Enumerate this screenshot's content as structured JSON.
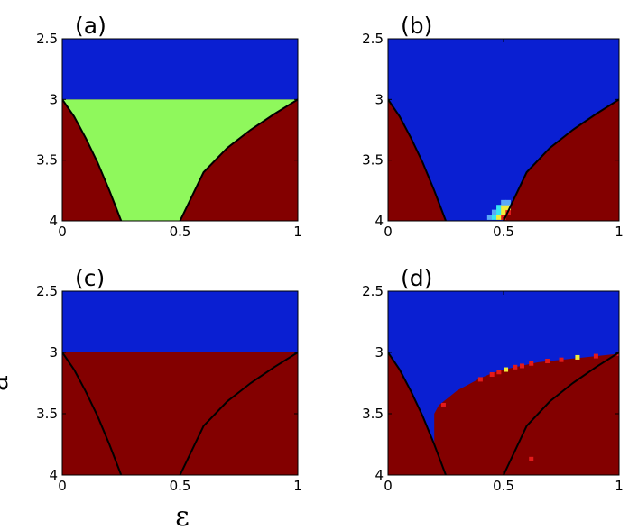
{
  "colors": {
    "blue": "#0a1fd2",
    "green": "#8ff85c",
    "darkred": "#830000",
    "red": "#e41a1a",
    "yellow": "#f1ec3a",
    "cyan": "#37e7f2",
    "lightblue": "#5aa9f7",
    "boundary": "#000000"
  },
  "axes": {
    "xlabel": "ε",
    "ylabel": "a"
  },
  "chart_data": [
    {
      "type": "heatmap",
      "panel": "(a)",
      "xlim": [
        0,
        1
      ],
      "ylim": [
        2.5,
        4
      ],
      "y_inverted": true,
      "xticks": [
        "0",
        "0.5",
        "1"
      ],
      "yticks": [
        "2.5",
        "3",
        "3.5",
        "4"
      ],
      "regions": [
        {
          "color": "blue",
          "description": "a from 2.5 to 3, all ε"
        },
        {
          "color": "green",
          "description": "a from 3 to 4, between the two boundary curves"
        },
        {
          "color": "darkred",
          "description": "a from 3 to 4, outside the boundary curves"
        }
      ],
      "left_boundary": {
        "x": [
          0,
          0.05,
          0.1,
          0.15,
          0.2,
          0.25
        ],
        "y": [
          3.0,
          3.14,
          3.32,
          3.52,
          3.75,
          4.0
        ]
      },
      "right_boundary": {
        "x": [
          0.5,
          0.6,
          0.7,
          0.8,
          0.9,
          1.0
        ],
        "y": [
          4.0,
          3.6,
          3.4,
          3.25,
          3.12,
          3.0
        ]
      }
    },
    {
      "type": "heatmap",
      "panel": "(b)",
      "xlim": [
        0,
        1
      ],
      "ylim": [
        2.5,
        4
      ],
      "y_inverted": true,
      "xticks": [
        "0",
        "0.5",
        "1"
      ],
      "yticks": [
        "2.5",
        "3",
        "3.5",
        "4"
      ],
      "regions": [
        {
          "color": "blue",
          "description": "a from 2.5 to 4, between the boundary curves"
        },
        {
          "color": "darkred",
          "description": "a from 3 to 4, outside the boundary curves"
        }
      ],
      "left_boundary": {
        "x": [
          0,
          0.05,
          0.1,
          0.15,
          0.2,
          0.25
        ],
        "y": [
          3.0,
          3.14,
          3.32,
          3.52,
          3.75,
          4.0
        ]
      },
      "right_boundary": {
        "x": [
          0.5,
          0.6,
          0.7,
          0.8,
          0.9,
          1.0
        ],
        "y": [
          4.0,
          3.6,
          3.4,
          3.25,
          3.12,
          3.0
        ]
      },
      "hotspot_cells": [
        {
          "x": 0.44,
          "y": 3.97,
          "color": "lightblue"
        },
        {
          "x": 0.46,
          "y": 3.97,
          "color": "cyan"
        },
        {
          "x": 0.46,
          "y": 3.93,
          "color": "lightblue"
        },
        {
          "x": 0.48,
          "y": 3.97,
          "color": "yellow"
        },
        {
          "x": 0.48,
          "y": 3.93,
          "color": "cyan"
        },
        {
          "x": 0.48,
          "y": 3.89,
          "color": "cyan"
        },
        {
          "x": 0.5,
          "y": 3.97,
          "color": "red"
        },
        {
          "x": 0.5,
          "y": 3.93,
          "color": "yellow"
        },
        {
          "x": 0.5,
          "y": 3.89,
          "color": "yellow"
        },
        {
          "x": 0.5,
          "y": 3.85,
          "color": "lightblue"
        },
        {
          "x": 0.52,
          "y": 3.93,
          "color": "red"
        },
        {
          "x": 0.52,
          "y": 3.89,
          "color": "yellow"
        },
        {
          "x": 0.52,
          "y": 3.85,
          "color": "lightblue"
        }
      ]
    },
    {
      "type": "heatmap",
      "panel": "(c)",
      "xlim": [
        0,
        1
      ],
      "ylim": [
        2.5,
        4
      ],
      "y_inverted": true,
      "xticks": [
        "0",
        "0.5",
        "1"
      ],
      "yticks": [
        "2.5",
        "3",
        "3.5",
        "4"
      ],
      "regions": [
        {
          "color": "blue",
          "description": "a from 2.5 to 3, all ε"
        },
        {
          "color": "darkred",
          "description": "a from 3 to 4, all ε"
        }
      ],
      "left_boundary": {
        "x": [
          0,
          0.05,
          0.1,
          0.15,
          0.2,
          0.25
        ],
        "y": [
          3.0,
          3.14,
          3.32,
          3.52,
          3.75,
          4.0
        ]
      },
      "right_boundary": {
        "x": [
          0.5,
          0.6,
          0.7,
          0.8,
          0.9,
          1.0
        ],
        "y": [
          4.0,
          3.6,
          3.4,
          3.25,
          3.12,
          3.0
        ]
      }
    },
    {
      "type": "heatmap",
      "panel": "(d)",
      "xlim": [
        0,
        1
      ],
      "ylim": [
        2.5,
        4
      ],
      "y_inverted": true,
      "xticks": [
        "0",
        "0.5",
        "1"
      ],
      "yticks": [
        "2.5",
        "3",
        "3.5",
        "4"
      ],
      "regions": [
        {
          "color": "blue",
          "description": "above the blue/red transition curve"
        },
        {
          "color": "darkred",
          "description": "below the blue/red transition curve"
        }
      ],
      "transition": {
        "x": [
          0.2,
          0.22,
          0.26,
          0.3,
          0.35,
          0.4,
          0.45,
          0.5,
          0.55,
          0.6,
          0.65,
          0.7,
          0.75,
          0.8,
          0.85,
          0.9,
          0.95,
          1.0
        ],
        "y": [
          3.5,
          3.43,
          3.37,
          3.31,
          3.26,
          3.21,
          3.17,
          3.14,
          3.12,
          3.1,
          3.08,
          3.07,
          3.06,
          3.05,
          3.04,
          3.03,
          3.02,
          3.01
        ]
      },
      "transition_cells": [
        {
          "x": 0.24,
          "y": 3.43,
          "color": "red"
        },
        {
          "x": 0.4,
          "y": 3.22,
          "color": "red"
        },
        {
          "x": 0.45,
          "y": 3.18,
          "color": "red"
        },
        {
          "x": 0.48,
          "y": 3.16,
          "color": "red"
        },
        {
          "x": 0.51,
          "y": 3.14,
          "color": "yellow"
        },
        {
          "x": 0.55,
          "y": 3.12,
          "color": "red"
        },
        {
          "x": 0.58,
          "y": 3.11,
          "color": "red"
        },
        {
          "x": 0.62,
          "y": 3.09,
          "color": "red"
        },
        {
          "x": 0.69,
          "y": 3.07,
          "color": "red"
        },
        {
          "x": 0.75,
          "y": 3.06,
          "color": "red"
        },
        {
          "x": 0.82,
          "y": 3.04,
          "color": "yellow"
        },
        {
          "x": 0.9,
          "y": 3.03,
          "color": "red"
        },
        {
          "x": 1.0,
          "y": 3.01,
          "color": "red"
        },
        {
          "x": 0.62,
          "y": 3.87,
          "color": "red"
        }
      ],
      "left_boundary": {
        "x": [
          0,
          0.05,
          0.1,
          0.15,
          0.2,
          0.25
        ],
        "y": [
          3.0,
          3.14,
          3.32,
          3.52,
          3.75,
          4.0
        ]
      },
      "right_boundary": {
        "x": [
          0.5,
          0.6,
          0.7,
          0.8,
          0.9,
          1.0
        ],
        "y": [
          4.0,
          3.6,
          3.4,
          3.25,
          3.12,
          3.0
        ]
      }
    }
  ]
}
